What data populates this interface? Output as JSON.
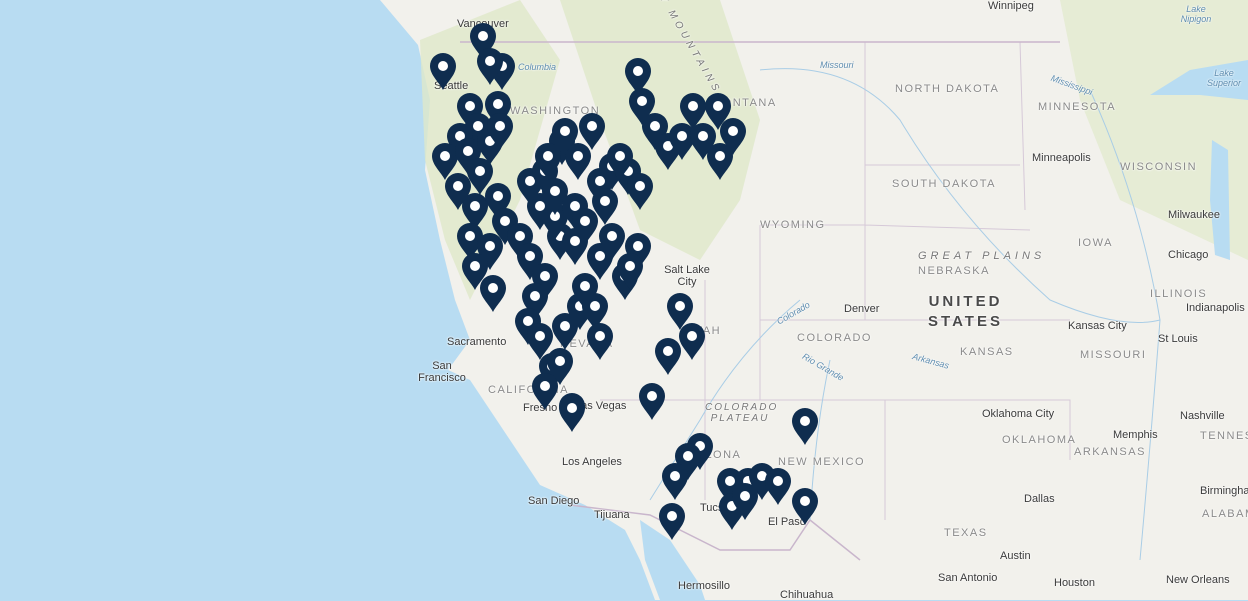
{
  "map": {
    "colors": {
      "marker": "#0f2d4f",
      "marker_dot": "#ffffff",
      "land": "#f2f1ec",
      "water": "#b8dcf2",
      "vegetation": "#dfe9c9",
      "border": "#c9b6cc"
    },
    "marker_icon": "map-pin-icon",
    "labels": {
      "cities": [
        "Vancouver",
        "Seattle",
        "Winnipeg",
        "Minneapolis",
        "Milwaukee",
        "Chicago",
        "Indianapolis",
        "Salt Lake City",
        "Denver",
        "Sacramento",
        "San Francisco",
        "Fresno",
        "Las Vegas",
        "Los Angeles",
        "San Diego",
        "Tijuana",
        "Tucson",
        "El Paso",
        "Hermosillo",
        "Chihuahua",
        "Kansas City",
        "St Louis",
        "Oklahoma City",
        "Memphis",
        "Nashville",
        "Dallas",
        "Austin",
        "San Antonio",
        "Houston",
        "New Orleans",
        "Birmingham",
        "Lake Nipigon",
        "Lake Superior"
      ],
      "states": [
        "WASHINGTON",
        "MONTANA",
        "NORTH DAKOTA",
        "MINNESOTA",
        "WISCONSIN",
        "SOUTH DAKOTA",
        "WYOMING",
        "NEBRASKA",
        "IOWA",
        "ILLINOIS",
        "COLORADO",
        "KANSAS",
        "MISSOURI",
        "UTAH",
        "CALIFORNIA",
        "ARIZONA",
        "NEW MEXICO",
        "OKLAHOMA",
        "ARKANSAS",
        "TEXAS",
        "TENNESSEE",
        "ALABAMA",
        "NEVADA"
      ],
      "country": "UNITED STATES",
      "regions": [
        "GREAT PLAINS",
        "COLORADO PLATEAU",
        "ROCKY MOUNTAINS"
      ],
      "rivers": [
        "Missouri",
        "Mississippi",
        "Arkansas",
        "Rio Grande",
        "Colorado",
        "Columbia"
      ]
    }
  }
}
